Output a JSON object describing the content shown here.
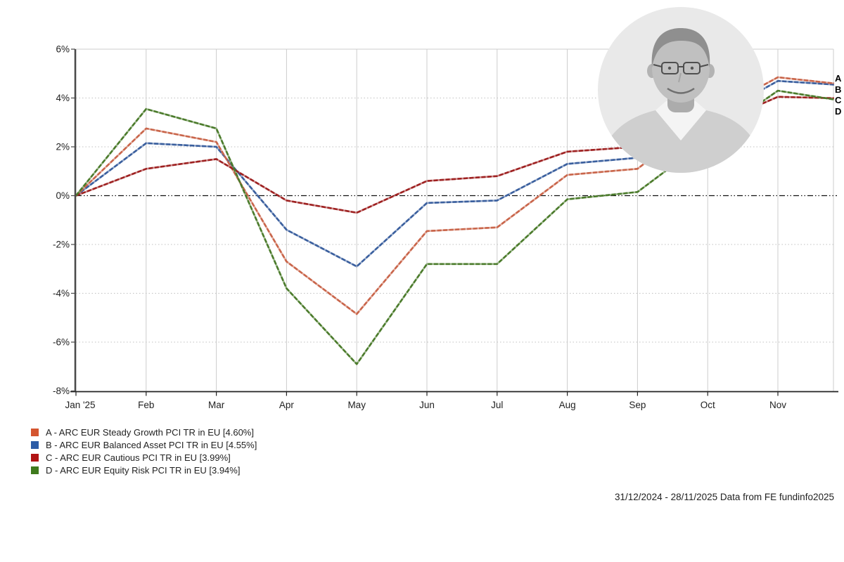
{
  "chart_data": {
    "type": "line",
    "title": "",
    "x_axis": {
      "tick_labels": [
        "Jan '25",
        "Feb",
        "Mar",
        "Apr",
        "May",
        "Jun",
        "Jul",
        "Aug",
        "Sep",
        "Oct",
        "Nov"
      ]
    },
    "y_axis": {
      "unit": "%",
      "range": [
        -8,
        6
      ],
      "ticks": [
        {
          "value": 6,
          "label": "6%"
        },
        {
          "value": 4,
          "label": "4%"
        },
        {
          "value": 2,
          "label": "2%"
        },
        {
          "value": 0,
          "label": "0%"
        },
        {
          "value": -2,
          "label": "-2%"
        },
        {
          "value": -4,
          "label": "-4%"
        },
        {
          "value": -6,
          "label": "-6%"
        },
        {
          "value": -8,
          "label": "-8%"
        }
      ]
    },
    "x_months": [
      0,
      1,
      2,
      3,
      4,
      5,
      6,
      7,
      8,
      9,
      10,
      10.8
    ],
    "series": [
      {
        "letter": "A",
        "name": "ARC EUR Steady Growth PCI TR in EU",
        "return_label": "4.60%",
        "legend_label": "A - ARC EUR Steady Growth PCI TR in EU [4.60%]",
        "color_line": "#c9654a",
        "color_swatch": "#d4552f",
        "values": [
          0,
          2.75,
          2.2,
          -2.7,
          -4.85,
          -1.45,
          -1.3,
          0.85,
          1.1,
          3.3,
          4.85,
          4.6
        ]
      },
      {
        "letter": "B",
        "name": "ARC EUR Balanced Asset PCI TR in EU",
        "return_label": "4.55%",
        "legend_label": "B - ARC EUR Balanced Asset PCI TR in EU [4.55%]",
        "color_line": "#3a5f9e",
        "color_swatch": "#2d5ca6",
        "values": [
          0,
          2.15,
          2.0,
          -1.4,
          -2.9,
          -0.3,
          -0.2,
          1.3,
          1.55,
          3.1,
          4.7,
          4.55
        ]
      },
      {
        "letter": "C",
        "name": "ARC EUR Cautious PCI TR in EU",
        "return_label": "3.99%",
        "legend_label": "C - ARC EUR Cautious PCI TR in EU [3.99%]",
        "color_line": "#9e2121",
        "color_swatch": "#b11414",
        "values": [
          0,
          1.1,
          1.5,
          -0.2,
          -0.7,
          0.6,
          0.8,
          1.8,
          2.0,
          2.8,
          4.05,
          3.99
        ]
      },
      {
        "letter": "D",
        "name": "ARC EUR Equity Risk PCI TR in EU",
        "return_label": "3.94%",
        "legend_label": "D - ARC EUR Equity Risk PCI TR in EU [3.94%]",
        "color_line": "#4b7b2b",
        "color_swatch": "#3f7a1d",
        "values": [
          0,
          3.55,
          2.75,
          -3.8,
          -6.9,
          -2.8,
          -2.8,
          -0.15,
          0.15,
          2.3,
          4.3,
          3.94
        ]
      }
    ],
    "grid_color": "#cccccc",
    "dotted_grid_color": "#c0c0c0",
    "zero_line_color": "#111111",
    "axis_color": "#4a4a4a",
    "legend_position": "bottom-left"
  },
  "footer": {
    "caption": "31/12/2024 - 28/11/2025 Data from FE fundinfo2025"
  },
  "portrait": {
    "description": "grayscale circular headshot of smiling man with glasses and light shirt"
  }
}
